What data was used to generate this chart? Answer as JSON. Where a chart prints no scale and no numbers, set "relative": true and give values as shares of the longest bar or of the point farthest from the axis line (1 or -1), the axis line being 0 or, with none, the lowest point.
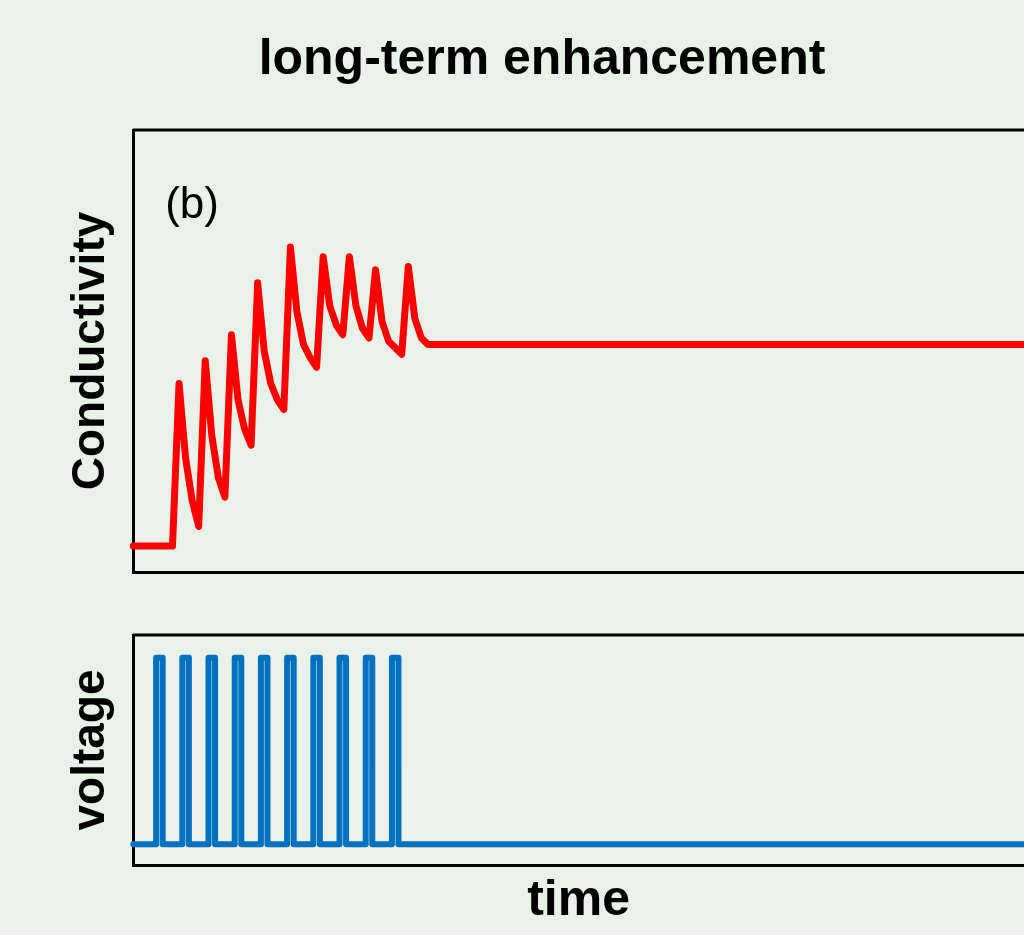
{
  "chart_data": [
    {
      "type": "line",
      "title": "long-term enhancement",
      "ylabel": "Conductivity",
      "annotations": [
        "(b)"
      ],
      "relative": true,
      "tick_labels": false,
      "grid": false,
      "legend": false,
      "marker": "none",
      "categories": [
        null,
        null,
        null,
        null,
        null,
        null,
        null,
        null,
        null,
        null,
        null,
        null,
        null,
        null,
        null,
        null,
        null,
        null,
        null,
        null,
        null,
        null,
        null,
        null,
        null,
        null,
        null,
        null,
        null,
        null,
        null,
        null,
        null,
        null,
        null,
        null,
        null,
        null,
        null,
        null,
        null,
        null,
        null,
        null,
        null,
        null,
        null,
        null,
        null,
        null,
        null,
        null,
        null,
        null,
        null,
        null,
        null,
        null,
        null,
        null,
        null,
        null,
        null,
        null,
        null,
        null,
        null,
        null,
        null,
        null,
        null,
        null,
        null,
        null,
        null,
        null,
        null,
        null,
        null,
        null,
        null,
        null,
        null,
        null,
        null,
        null,
        null,
        null,
        null,
        null,
        null,
        null,
        null,
        null,
        null,
        null,
        null,
        null,
        null,
        null,
        null,
        null,
        null,
        null,
        null,
        null,
        null,
        null,
        null,
        null,
        null,
        null,
        null,
        null,
        null,
        null,
        null,
        null,
        null,
        null,
        null,
        null,
        null,
        null,
        null,
        null,
        null,
        null,
        null,
        null,
        null,
        null,
        null,
        null,
        null,
        null,
        null
      ],
      "series": [
        {
          "color": "#ff0000",
          "values": [
            0.08,
            0.08,
            0.08,
            0.08,
            0.08,
            0.08,
            0.08,
            0.58,
            0.35,
            0.22,
            0.14,
            0.65,
            0.42,
            0.29,
            0.23,
            0.73,
            0.53,
            0.44,
            0.39,
            0.89,
            0.68,
            0.58,
            0.53,
            0.5,
            1,
            0.8,
            0.7,
            0.66,
            0.63,
            0.97,
            0.82,
            0.76,
            0.73,
            0.97,
            0.82,
            0.75,
            0.72,
            0.93,
            0.77,
            0.71,
            0.69,
            0.67,
            0.94,
            0.78,
            0.72,
            0.7,
            0.7,
            0.7,
            0.7,
            0.7,
            0.7,
            0.7,
            0.7,
            0.7,
            0.7,
            0.7,
            0.7,
            0.7,
            0.7,
            0.7,
            0.7,
            0.7,
            0.7,
            0.7,
            0.7,
            0.7,
            0.7,
            0.7,
            0.7,
            0.7,
            0.7,
            0.7,
            0.7,
            0.7,
            0.7,
            0.7,
            0.7,
            0.7,
            0.7,
            0.7,
            0.7,
            0.7,
            0.7,
            0.7,
            0.7,
            0.7,
            0.7,
            0.7,
            0.7,
            0.7,
            0.7,
            0.7,
            0.7,
            0.7,
            0.7,
            0.7,
            0.7,
            0.7,
            0.7,
            0.7,
            0.7,
            0.7,
            0.7,
            0.7,
            0.7,
            0.7,
            0.7,
            0.7,
            0.7,
            0.7,
            0.7,
            0.7,
            0.7,
            0.7,
            0.7,
            0.7,
            0.7,
            0.7,
            0.7,
            0.7,
            0.7,
            0.7,
            0.7,
            0.7,
            0.7,
            0.7,
            0.7,
            0.7,
            0.7,
            0.7,
            0.7,
            0.7,
            0.7,
            0.7,
            0.7,
            0.7,
            0.7
          ]
        }
      ]
    },
    {
      "type": "step",
      "xlabel": "time",
      "ylabel": "voltage",
      "relative": true,
      "tick_labels": false,
      "grid": false,
      "legend": false,
      "marker": "none",
      "categories": [
        null,
        null,
        null,
        null,
        null,
        null,
        null,
        null,
        null,
        null,
        null,
        null,
        null,
        null,
        null,
        null,
        null,
        null,
        null,
        null,
        null,
        null,
        null,
        null,
        null,
        null,
        null,
        null,
        null,
        null,
        null,
        null,
        null,
        null,
        null,
        null,
        null,
        null,
        null,
        null,
        null,
        null,
        null,
        null,
        null,
        null,
        null,
        null,
        null,
        null,
        null,
        null,
        null,
        null,
        null,
        null,
        null,
        null,
        null,
        null,
        null,
        null,
        null,
        null,
        null,
        null,
        null,
        null,
        null,
        null,
        null,
        null,
        null,
        null,
        null,
        null,
        null,
        null,
        null,
        null,
        null,
        null,
        null,
        null,
        null,
        null,
        null,
        null,
        null,
        null,
        null,
        null,
        null,
        null,
        null,
        null,
        null,
        null,
        null,
        null,
        null,
        null,
        null,
        null,
        null,
        null,
        null,
        null,
        null,
        null,
        null,
        null,
        null,
        null,
        null,
        null,
        null,
        null,
        null,
        null,
        null,
        null,
        null,
        null,
        null,
        null,
        null,
        null,
        null,
        null,
        null,
        null,
        null,
        null,
        null,
        null,
        null
      ],
      "series": [
        {
          "color": "#0070c0",
          "values": [
            0.1,
            0.1,
            0.1,
            0.1,
            1,
            0.1,
            0.1,
            0.1,
            1,
            0.1,
            0.1,
            0.1,
            1,
            0.1,
            0.1,
            0.1,
            1,
            0.1,
            0.1,
            0.1,
            1,
            0.1,
            0.1,
            0.1,
            1,
            0.1,
            0.1,
            0.1,
            1,
            0.1,
            0.1,
            0.1,
            1,
            0.1,
            0.1,
            0.1,
            1,
            0.1,
            0.1,
            0.1,
            1,
            0.1,
            0.1,
            0.1,
            0.1,
            0.1,
            0.1,
            0.1,
            0.1,
            0.1,
            0.1,
            0.1,
            0.1,
            0.1,
            0.1,
            0.1,
            0.1,
            0.1,
            0.1,
            0.1,
            0.1,
            0.1,
            0.1,
            0.1,
            0.1,
            0.1,
            0.1,
            0.1,
            0.1,
            0.1,
            0.1,
            0.1,
            0.1,
            0.1,
            0.1,
            0.1,
            0.1,
            0.1,
            0.1,
            0.1,
            0.1,
            0.1,
            0.1,
            0.1,
            0.1,
            0.1,
            0.1,
            0.1,
            0.1,
            0.1,
            0.1,
            0.1,
            0.1,
            0.1,
            0.1,
            0.1,
            0.1,
            0.1,
            0.1,
            0.1,
            0.1,
            0.1,
            0.1,
            0.1,
            0.1,
            0.1,
            0.1,
            0.1,
            0.1,
            0.1,
            0.1,
            0.1,
            0.1,
            0.1,
            0.1,
            0.1,
            0.1,
            0.1,
            0.1,
            0.1,
            0.1,
            0.1,
            0.1,
            0.1,
            0.1,
            0.1,
            0.1,
            0.1,
            0.1,
            0.1,
            0.1,
            0.1,
            0.1,
            0.1,
            0.1,
            0.1,
            0.1
          ]
        }
      ]
    }
  ]
}
